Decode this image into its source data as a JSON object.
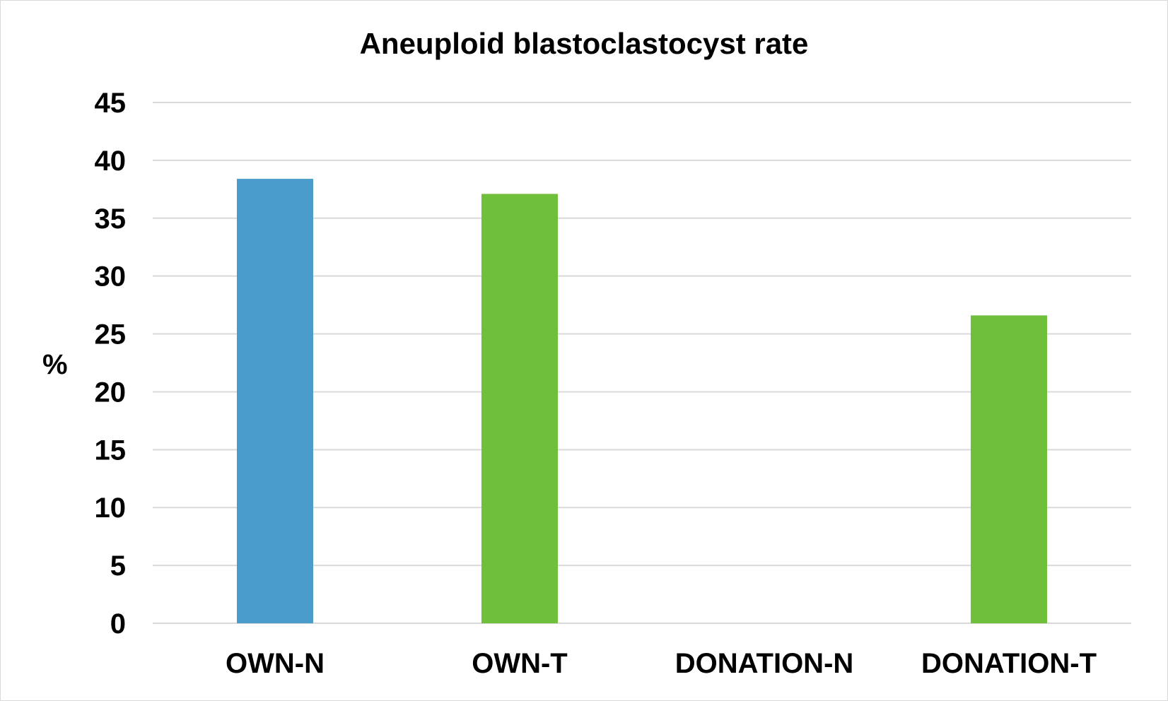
{
  "chart_data": {
    "type": "bar",
    "title": "Aneuploid blastoclastocyst rate",
    "xlabel": "",
    "ylabel": "%",
    "categories": [
      "OWN-N",
      "OWN-T",
      "DONATION-N",
      "DONATION-T"
    ],
    "values": [
      38.4,
      37.1,
      0,
      26.6
    ],
    "bar_colors": [
      "#4a9ccb",
      "#6fbf3b",
      "#6fbf3b",
      "#6fbf3b"
    ],
    "ylim": [
      0,
      45
    ],
    "yticks": [
      "0",
      "5",
      "10",
      "15",
      "20",
      "25",
      "30",
      "35",
      "40",
      "45"
    ],
    "grid": true,
    "legend": "none"
  },
  "colors": {
    "gridline": "#d9d9d9",
    "frame": "#d9d9d9"
  }
}
